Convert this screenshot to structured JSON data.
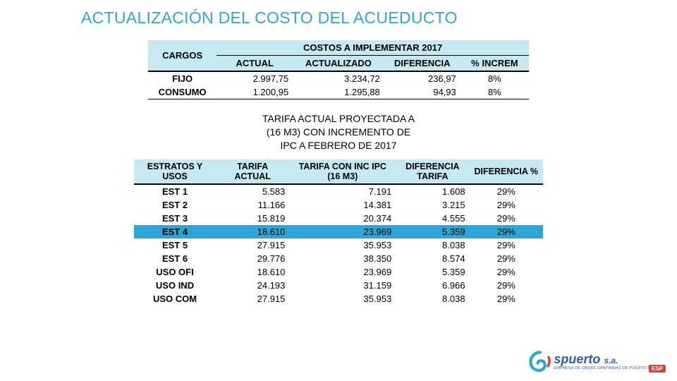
{
  "title": "ACTUALIZACIÓN DEL COSTO DEL ACUEDUCTO",
  "colors": {
    "title": "#2ca6d6",
    "header_bg": "#c5e9f1",
    "highlight_row": "#2ca6d6",
    "text": "#000000",
    "background": "#ffffff"
  },
  "table1": {
    "merged_header": "COSTOS A IMPLEMENTAR 2017",
    "columns": [
      "CARGOS",
      "ACTUAL",
      "ACTUALIZADO",
      "DIFERENCIA",
      "% INCREM"
    ],
    "col_widths_pct": [
      18,
      20,
      24,
      20,
      18
    ],
    "rows": [
      {
        "label": "FIJO",
        "actual": "2.997,75",
        "actualizado": "3.234,72",
        "diferencia": "236,97",
        "pct": "8%"
      },
      {
        "label": "CONSUMO",
        "actual": "1.200,95",
        "actualizado": "1.295,88",
        "diferencia": "94,93",
        "pct": "8%"
      }
    ]
  },
  "subtitle_lines": [
    "TARIFA ACTUAL PROYECTADA A",
    "(16 M3) CON INCREMENTO DE",
    "IPC A FEBRERO DE 2017"
  ],
  "table2": {
    "columns": [
      "ESTRATOS Y USOS",
      "TARIFA ACTUAL",
      "TARIFA CON INC IPC (16 M3)",
      "DIFERENCIA TARIFA",
      "DIFERENCIA %"
    ],
    "col_widths_pct": [
      20,
      18,
      26,
      18,
      18
    ],
    "highlight_index": 3,
    "rows": [
      {
        "label": "EST 1",
        "tarifa": "5.583",
        "tarifa_ipc": "7.191",
        "dif": "1.608",
        "pct": "29%"
      },
      {
        "label": "EST 2",
        "tarifa": "11.166",
        "tarifa_ipc": "14.381",
        "dif": "3.215",
        "pct": "29%"
      },
      {
        "label": "EST 3",
        "tarifa": "15.819",
        "tarifa_ipc": "20.374",
        "dif": "4.555",
        "pct": "29%"
      },
      {
        "label": "EST 4",
        "tarifa": "18.610",
        "tarifa_ipc": "23.969",
        "dif": "5.359",
        "pct": "29%"
      },
      {
        "label": "EST 5",
        "tarifa": "27.915",
        "tarifa_ipc": "35.953",
        "dif": "8.038",
        "pct": "29%"
      },
      {
        "label": "EST 6",
        "tarifa": "29.776",
        "tarifa_ipc": "38.350",
        "dif": "8.574",
        "pct": "29%"
      },
      {
        "label": "USO OFI",
        "tarifa": "18.610",
        "tarifa_ipc": "23.969",
        "dif": "5.359",
        "pct": "29%"
      },
      {
        "label": "USO IND",
        "tarifa": "24.193",
        "tarifa_ipc": "31.159",
        "dif": "6.966",
        "pct": "29%"
      },
      {
        "label": "USO COM",
        "tarifa": "27.915",
        "tarifa_ipc": "35.953",
        "dif": "8.038",
        "pct": "29%"
      }
    ]
  },
  "logo": {
    "brand": "spuerto",
    "suffix": "s.a.",
    "tagline": "EMPRESA DE OBRAS SANITARIAS DE PUERTO BOYACÁ",
    "badge": "ESP"
  }
}
